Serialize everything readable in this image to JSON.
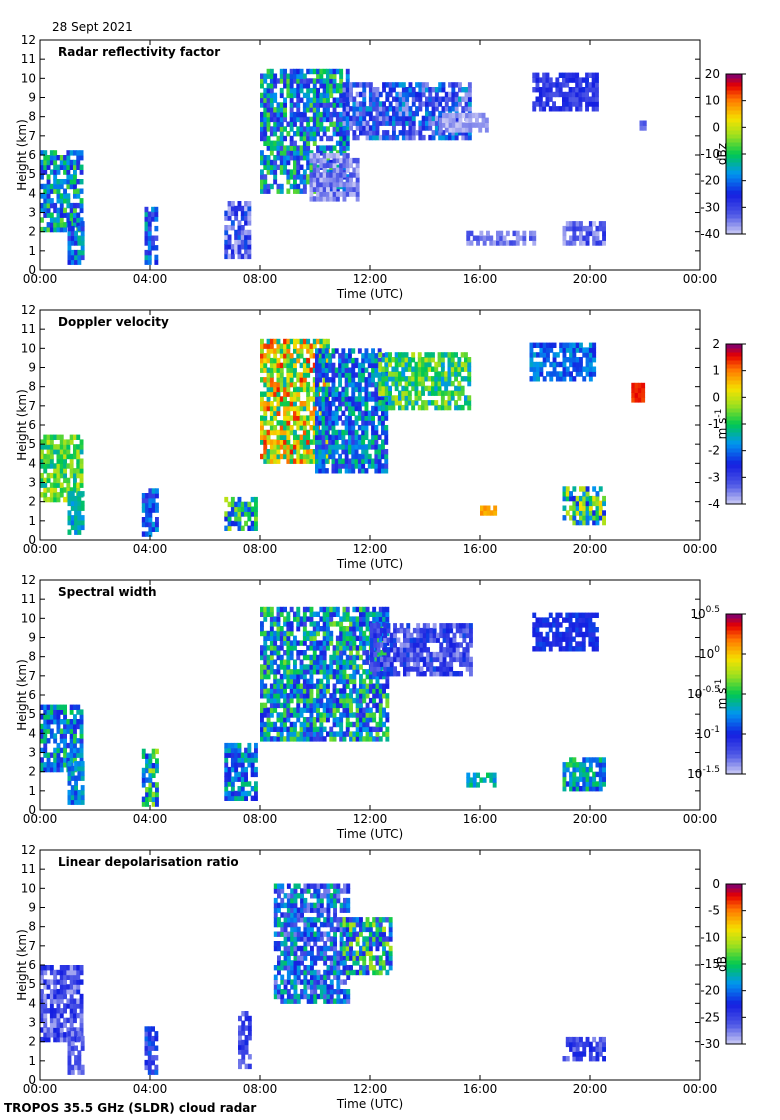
{
  "header": {
    "date": "28 Sept 2021"
  },
  "footer": {
    "instrument": "TROPOS 35.5 GHz (SLDR) cloud radar"
  },
  "chart_data": [
    {
      "type": "heatmap",
      "title": "Radar reflectivity factor",
      "xlabel": "Time (UTC)",
      "ylabel": "Height (km)",
      "xticks": [
        "00:00",
        "04:00",
        "08:00",
        "12:00",
        "16:00",
        "20:00",
        "00:00"
      ],
      "xlim": [
        0,
        24
      ],
      "ylim": [
        0,
        12
      ],
      "yticks": [
        "0",
        "1",
        "2",
        "3",
        "4",
        "5",
        "6",
        "7",
        "8",
        "9",
        "10",
        "11",
        "12"
      ],
      "colorbar": {
        "label": "dBz",
        "min": -40,
        "max": 20,
        "ticks": [
          {
            "v": 20,
            "t": "20"
          },
          {
            "v": 10,
            "t": "10"
          },
          {
            "v": 0,
            "t": "0"
          },
          {
            "v": -10,
            "t": "-10"
          },
          {
            "v": -20,
            "t": "-20"
          },
          {
            "v": -30,
            "t": "-30"
          },
          {
            "v": -40,
            "t": "-40"
          }
        ]
      },
      "regions": [
        {
          "x0": 0.0,
          "x1": 1.5,
          "y0": 2.0,
          "y1": 6.2,
          "v0": -28,
          "v1": -5
        },
        {
          "x0": 1.0,
          "x1": 1.5,
          "y0": 0.3,
          "y1": 2.5,
          "v0": -30,
          "v1": -12
        },
        {
          "x0": 3.8,
          "x1": 4.2,
          "y0": 0.3,
          "y1": 3.3,
          "v0": -32,
          "v1": -12
        },
        {
          "x0": 6.7,
          "x1": 7.6,
          "y0": 0.6,
          "y1": 3.5,
          "v0": -40,
          "v1": -20
        },
        {
          "x0": 8.0,
          "x1": 11.2,
          "y0": 4.0,
          "y1": 10.5,
          "v0": -32,
          "v1": -5
        },
        {
          "x0": 9.8,
          "x1": 11.5,
          "y0": 3.6,
          "y1": 6.0,
          "v0": -40,
          "v1": -30
        },
        {
          "x0": 11.0,
          "x1": 15.6,
          "y0": 6.8,
          "y1": 9.6,
          "v0": -38,
          "v1": -15
        },
        {
          "x0": 14.5,
          "x1": 16.2,
          "y0": 7.2,
          "y1": 8.2,
          "v0": -40,
          "v1": -35
        },
        {
          "x0": 17.9,
          "x1": 20.2,
          "y0": 8.3,
          "y1": 10.2,
          "v0": -33,
          "v1": -24
        },
        {
          "x0": 19.0,
          "x1": 20.5,
          "y0": 1.3,
          "y1": 2.4,
          "v0": -40,
          "v1": -26
        },
        {
          "x0": 15.5,
          "x1": 18.0,
          "y0": 1.3,
          "y1": 1.9,
          "v0": -38,
          "v1": -30
        },
        {
          "x0": 21.8,
          "x1": 22.0,
          "y0": 7.3,
          "y1": 7.8,
          "v0": -35,
          "v1": -30
        }
      ]
    },
    {
      "type": "heatmap",
      "title": "Doppler velocity",
      "xlabel": "Time (UTC)",
      "ylabel": "Height (km)",
      "xticks": [
        "00:00",
        "04:00",
        "08:00",
        "12:00",
        "16:00",
        "20:00",
        "00:00"
      ],
      "xlim": [
        0,
        24
      ],
      "ylim": [
        0,
        12
      ],
      "yticks": [
        "0",
        "1",
        "2",
        "3",
        "4",
        "5",
        "6",
        "7",
        "8",
        "9",
        "10",
        "11",
        "12"
      ],
      "colorbar": {
        "label": "m s",
        "label_sup": "-1",
        "min": -4,
        "max": 2,
        "ticks": [
          {
            "v": 2,
            "t": "2"
          },
          {
            "v": 1,
            "t": "1"
          },
          {
            "v": 0,
            "t": "0"
          },
          {
            "v": -1,
            "t": "-1"
          },
          {
            "v": -2,
            "t": "-2"
          },
          {
            "v": -3,
            "t": "-3"
          },
          {
            "v": -4,
            "t": "-4"
          }
        ]
      },
      "regions": [
        {
          "x0": 0.0,
          "x1": 1.5,
          "y0": 2.0,
          "y1": 5.3,
          "v0": -1.5,
          "v1": 0.2
        },
        {
          "x0": 1.0,
          "x1": 1.5,
          "y0": 0.3,
          "y1": 2.5,
          "v0": -2.0,
          "v1": -1.0
        },
        {
          "x0": 3.7,
          "x1": 4.3,
          "y0": 0.2,
          "y1": 2.5,
          "v0": -3.0,
          "v1": -1.5
        },
        {
          "x0": 6.7,
          "x1": 7.8,
          "y0": 0.5,
          "y1": 2.2,
          "v0": -2.5,
          "v1": 0.0
        },
        {
          "x0": 8.0,
          "x1": 10.5,
          "y0": 4.0,
          "y1": 10.5,
          "v0": -1.5,
          "v1": 1.5
        },
        {
          "x0": 10.0,
          "x1": 12.6,
          "y0": 3.5,
          "y1": 10.0,
          "v0": -3.0,
          "v1": -1.0
        },
        {
          "x0": 12.3,
          "x1": 15.6,
          "y0": 6.8,
          "y1": 9.6,
          "v0": -1.8,
          "v1": 0.0
        },
        {
          "x0": 17.8,
          "x1": 20.2,
          "y0": 8.3,
          "y1": 10.2,
          "v0": -2.5,
          "v1": -1.5
        },
        {
          "x0": 19.0,
          "x1": 20.5,
          "y0": 0.8,
          "y1": 2.6,
          "v0": -2.5,
          "v1": 0.5
        },
        {
          "x0": 16.0,
          "x1": 16.5,
          "y0": 1.3,
          "y1": 1.8,
          "v0": 0.5,
          "v1": 1.0
        },
        {
          "x0": 21.5,
          "x1": 21.9,
          "y0": 7.2,
          "y1": 8.0,
          "v0": 1.2,
          "v1": 1.6
        }
      ]
    },
    {
      "type": "heatmap",
      "title": "Spectral width",
      "xlabel": "Time (UTC)",
      "ylabel": "Height (km)",
      "xticks": [
        "00:00",
        "04:00",
        "08:00",
        "12:00",
        "16:00",
        "20:00",
        "00:00"
      ],
      "xlim": [
        0,
        24
      ],
      "ylim": [
        0,
        12
      ],
      "yticks": [
        "0",
        "1",
        "2",
        "3",
        "4",
        "5",
        "6",
        "7",
        "8",
        "9",
        "10",
        "11",
        "12"
      ],
      "colorbar": {
        "label": "m s",
        "label_sup": "-1",
        "min": -1.5,
        "max": 0.5,
        "log": true,
        "ticks": [
          {
            "v": 0.5,
            "t": "10",
            "sup": "0.5"
          },
          {
            "v": 0,
            "t": "10",
            "sup": "0"
          },
          {
            "v": -0.5,
            "t": "10",
            "sup": "-0.5"
          },
          {
            "v": -1,
            "t": "10",
            "sup": "-1"
          },
          {
            "v": -1.5,
            "t": "10",
            "sup": "-1.5"
          }
        ]
      },
      "regions": [
        {
          "x0": 0.0,
          "x1": 1.5,
          "y0": 2.0,
          "y1": 5.3,
          "v0": -1.1,
          "v1": -0.4
        },
        {
          "x0": 1.0,
          "x1": 1.5,
          "y0": 0.3,
          "y1": 2.5,
          "v0": -1.0,
          "v1": -0.6
        },
        {
          "x0": 3.7,
          "x1": 4.3,
          "y0": 0.2,
          "y1": 3.2,
          "v0": -1.0,
          "v1": -0.2
        },
        {
          "x0": 6.7,
          "x1": 7.8,
          "y0": 0.5,
          "y1": 3.5,
          "v0": -1.1,
          "v1": -0.5
        },
        {
          "x0": 8.0,
          "x1": 12.6,
          "y0": 3.6,
          "y1": 10.5,
          "v0": -1.2,
          "v1": -0.3
        },
        {
          "x0": 12.0,
          "x1": 15.6,
          "y0": 7.0,
          "y1": 9.6,
          "v0": -1.4,
          "v1": -0.9
        },
        {
          "x0": 17.9,
          "x1": 20.2,
          "y0": 8.3,
          "y1": 10.2,
          "v0": -1.1,
          "v1": -0.9
        },
        {
          "x0": 19.0,
          "x1": 20.5,
          "y0": 1.0,
          "y1": 2.6,
          "v0": -1.0,
          "v1": -0.4
        },
        {
          "x0": 15.5,
          "x1": 16.5,
          "y0": 1.2,
          "y1": 1.8,
          "v0": -0.8,
          "v1": -0.5
        }
      ]
    },
    {
      "type": "heatmap",
      "title": "Linear depolarisation ratio",
      "xlabel": "Time (UTC)",
      "ylabel": "Height (km)",
      "xticks": [
        "00:00",
        "04:00",
        "08:00",
        "12:00",
        "16:00",
        "20:00",
        "00:00"
      ],
      "xlim": [
        0,
        24
      ],
      "ylim": [
        0,
        12
      ],
      "yticks": [
        "0",
        "1",
        "2",
        "3",
        "4",
        "5",
        "6",
        "7",
        "8",
        "9",
        "10",
        "11",
        "12"
      ],
      "colorbar": {
        "label": "dB",
        "min": -30,
        "max": 0,
        "ticks": [
          {
            "v": 0,
            "t": "0"
          },
          {
            "v": -5,
            "t": "-5"
          },
          {
            "v": -10,
            "t": "-10"
          },
          {
            "v": -15,
            "t": "-15"
          },
          {
            "v": -20,
            "t": "-20"
          },
          {
            "v": -25,
            "t": "-25"
          },
          {
            "v": -30,
            "t": "-30"
          }
        ]
      },
      "regions": [
        {
          "x0": 0.0,
          "x1": 1.5,
          "y0": 2.0,
          "y1": 6.0,
          "v0": -29,
          "v1": -22
        },
        {
          "x0": 1.0,
          "x1": 1.5,
          "y0": 0.3,
          "y1": 2.5,
          "v0": -29,
          "v1": -24
        },
        {
          "x0": 3.8,
          "x1": 4.2,
          "y0": 0.3,
          "y1": 2.8,
          "v0": -28,
          "v1": -20
        },
        {
          "x0": 7.2,
          "x1": 7.6,
          "y0": 0.6,
          "y1": 3.5,
          "v0": -28,
          "v1": -22
        },
        {
          "x0": 8.5,
          "x1": 11.2,
          "y0": 4.0,
          "y1": 10.2,
          "v0": -28,
          "v1": -15
        },
        {
          "x0": 11.0,
          "x1": 12.7,
          "y0": 5.5,
          "y1": 8.5,
          "v0": -26,
          "v1": -10
        },
        {
          "x0": 19.0,
          "x1": 20.5,
          "y0": 1.0,
          "y1": 2.2,
          "v0": -28,
          "v1": -22
        }
      ]
    }
  ]
}
